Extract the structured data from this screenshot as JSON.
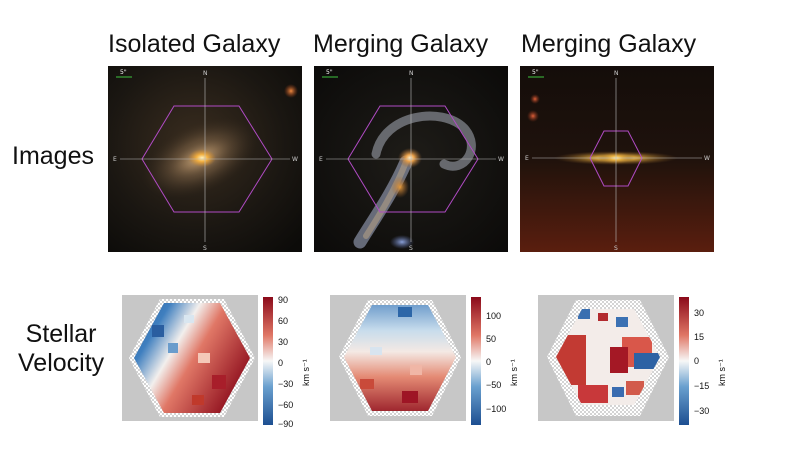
{
  "columns": [
    {
      "title": "Isolated Galaxy",
      "compass": {
        "n": "N",
        "s": "S",
        "e": "E",
        "w": "W"
      },
      "scale_label": "5\"",
      "velocity": {
        "ticks": [
          "90",
          "60",
          "30",
          "0",
          "−30",
          "−60",
          "−90"
        ],
        "unit": "km s⁻¹"
      }
    },
    {
      "title": "Merging Galaxy",
      "compass": {
        "n": "N",
        "s": "S",
        "e": "E",
        "w": "W"
      },
      "scale_label": "5\"",
      "velocity": {
        "ticks": [
          "100",
          "50",
          "0",
          "−50",
          "−100"
        ],
        "unit": "km s⁻¹"
      }
    },
    {
      "title": "Merging Galaxy",
      "compass": {
        "n": "N",
        "s": "S",
        "e": "E",
        "w": "W"
      },
      "scale_label": "5\"",
      "velocity": {
        "ticks": [
          "30",
          "15",
          "0",
          "−15",
          "−30"
        ],
        "unit": "km s⁻¹"
      }
    }
  ],
  "row_labels": {
    "images": "Images",
    "velocity_line1": "Stellar",
    "velocity_line2": "Velocity"
  },
  "colors": {
    "velocity_high": "#8b0a1a",
    "velocity_mid": "#f7f7f7",
    "velocity_low": "#1d4f91",
    "hexagon": "#b04bc4",
    "crosshair": "#bcbcbc"
  }
}
